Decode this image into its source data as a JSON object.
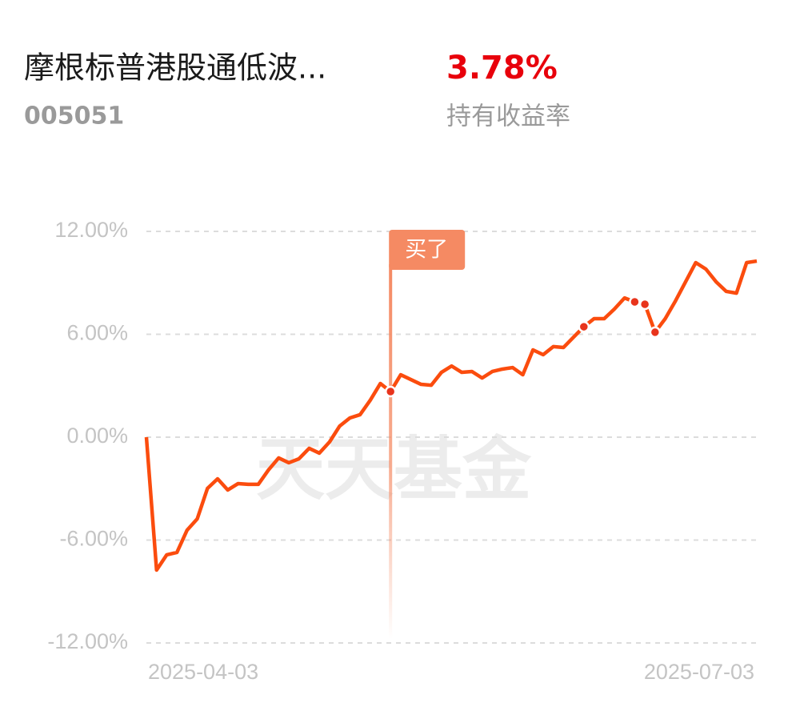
{
  "header": {
    "title": "摩根标普港股通低波...",
    "code": "005051",
    "return": "3.78%",
    "return_label": "持有收益率"
  },
  "watermark": "天天基金",
  "chart_data": {
    "type": "line",
    "color": "#fb4c0e",
    "categories": [
      "2025-04-03",
      null,
      null,
      null,
      null,
      null,
      null,
      null,
      null,
      null,
      null,
      null,
      null,
      null,
      null,
      null,
      null,
      null,
      null,
      null,
      null,
      null,
      null,
      null,
      null,
      null,
      null,
      null,
      null,
      null,
      null,
      null,
      null,
      null,
      null,
      null,
      null,
      null,
      null,
      null,
      null,
      null,
      null,
      null,
      null,
      null,
      null,
      null,
      null,
      null,
      null,
      null,
      null,
      null,
      null,
      null,
      null,
      null,
      null,
      null,
      "2025-07-03"
    ],
    "values": [
      0,
      -7.75,
      -6.86,
      -6.72,
      -5.42,
      -4.76,
      -2.99,
      -2.43,
      -3.08,
      -2.71,
      -2.75,
      -2.75,
      -1.91,
      -1.21,
      -1.49,
      -1.26,
      -0.65,
      -0.93,
      -0.28,
      0.65,
      1.12,
      1.31,
      2.15,
      3.13,
      2.66,
      3.64,
      3.36,
      3.08,
      3.03,
      3.78,
      4.15,
      3.78,
      3.83,
      3.45,
      3.83,
      3.97,
      4.06,
      3.64,
      5.09,
      4.81,
      5.28,
      5.23,
      5.84,
      6.44,
      6.91,
      6.91,
      7.47,
      8.12,
      7.89,
      7.75,
      6.12,
      6.91,
      7.94,
      9.06,
      10.18,
      9.8,
      9.06,
      8.5,
      8.4,
      10.18,
      10.27
    ],
    "ylim": [
      -12,
      12
    ],
    "yticks": [
      {
        "value": 12,
        "label": "12.00%"
      },
      {
        "value": 6,
        "label": "6.00%"
      },
      {
        "value": 0,
        "label": "0.00%"
      },
      {
        "value": -6,
        "label": "-6.00%"
      },
      {
        "value": -12,
        "label": "-12.00%"
      }
    ],
    "grid": true,
    "annotation": {
      "text": "买了",
      "index": 24
    },
    "trade_points": [
      24,
      43,
      48,
      49,
      50
    ]
  }
}
